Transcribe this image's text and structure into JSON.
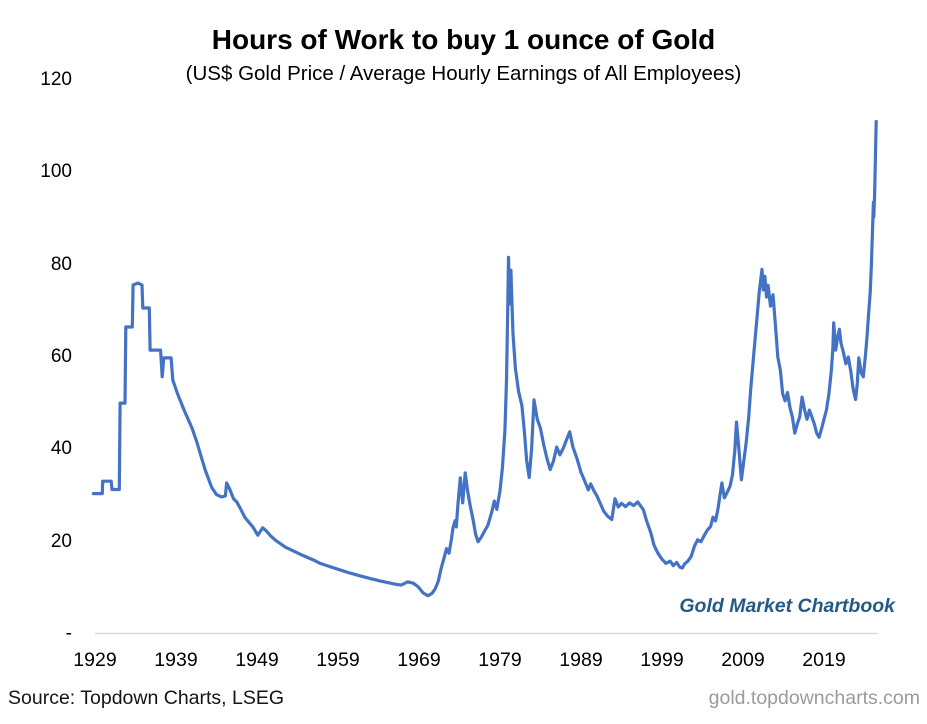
{
  "header": {
    "title": "Hours of Work to buy 1 ounce of Gold",
    "subtitle": "(US$ Gold Price / Average Hourly Earnings of All Employees)"
  },
  "watermark": "Gold Market Chartbook",
  "footer": {
    "source": "Source: Topdown Charts, LSEG",
    "website": "gold.topdowncharts.com"
  },
  "colors": {
    "line": "#4472C4",
    "watermark": "#235a87",
    "axis_line": "#d9d9d9",
    "tick_text": "#000000",
    "website_text": "#9b9b9b"
  },
  "chart_data": {
    "type": "line",
    "title": "Hours of Work to buy 1 ounce of Gold",
    "subtitle": "(US$ Gold Price / Average Hourly Earnings of All Employees)",
    "xlabel": "",
    "ylabel": "",
    "grid": false,
    "legend_position": "none",
    "xlim": [
      1929,
      2027
    ],
    "ylim": [
      0,
      120
    ],
    "x_ticks": [
      1929,
      1939,
      1949,
      1959,
      1969,
      1979,
      1989,
      1999,
      2009,
      2019
    ],
    "x_tick_labels": [
      "1929",
      "1939",
      "1949",
      "1959",
      "1969",
      "1979",
      "1989",
      "1999",
      "2009",
      "2019"
    ],
    "y_ticks": [
      0,
      20,
      40,
      60,
      80,
      100,
      120
    ],
    "y_tick_labels": [
      "-",
      "20",
      "40",
      "60",
      "80",
      "100",
      "120"
    ],
    "series": [
      {
        "name": "Hours of work to buy 1 ounce of gold",
        "points": [
          [
            1928.8,
            30.4
          ],
          [
            1929.9,
            30.4
          ],
          [
            1929.95,
            33.1
          ],
          [
            1931.0,
            33.1
          ],
          [
            1931.1,
            31.3
          ],
          [
            1932.0,
            31.3
          ],
          [
            1932.1,
            50.0
          ],
          [
            1932.7,
            50.0
          ],
          [
            1932.8,
            66.5
          ],
          [
            1933.6,
            66.5
          ],
          [
            1933.7,
            75.6
          ],
          [
            1934.3,
            76.0
          ],
          [
            1934.8,
            75.6
          ],
          [
            1934.9,
            70.6
          ],
          [
            1935.7,
            70.6
          ],
          [
            1935.8,
            61.5
          ],
          [
            1937.1,
            61.5
          ],
          [
            1937.3,
            55.7
          ],
          [
            1937.5,
            59.8
          ],
          [
            1938.4,
            59.8
          ],
          [
            1938.6,
            55.0
          ],
          [
            1939.2,
            52.0
          ],
          [
            1940.0,
            48.5
          ],
          [
            1941.0,
            44.5
          ],
          [
            1941.6,
            41.4
          ],
          [
            1942.6,
            35.5
          ],
          [
            1943.4,
            31.8
          ],
          [
            1944.0,
            30.2
          ],
          [
            1944.6,
            29.7
          ],
          [
            1945.1,
            29.9
          ],
          [
            1945.25,
            32.7
          ],
          [
            1945.6,
            31.5
          ],
          [
            1946.1,
            29.3
          ],
          [
            1946.5,
            28.6
          ],
          [
            1947.0,
            27.0
          ],
          [
            1947.5,
            25.3
          ],
          [
            1948.0,
            24.2
          ],
          [
            1948.5,
            23.2
          ],
          [
            1949.1,
            21.4
          ],
          [
            1949.7,
            23.0
          ],
          [
            1950.1,
            22.4
          ],
          [
            1950.7,
            21.2
          ],
          [
            1951.3,
            20.3
          ],
          [
            1952.5,
            18.8
          ],
          [
            1954.3,
            17.3
          ],
          [
            1956.0,
            16.0
          ],
          [
            1956.8,
            15.3
          ],
          [
            1958.0,
            14.6
          ],
          [
            1959.2,
            13.9
          ],
          [
            1960.5,
            13.2
          ],
          [
            1961.7,
            12.6
          ],
          [
            1963.0,
            12.0
          ],
          [
            1964.2,
            11.5
          ],
          [
            1966.0,
            10.8
          ],
          [
            1966.8,
            10.6
          ],
          [
            1967.6,
            11.3
          ],
          [
            1968.3,
            11.0
          ],
          [
            1968.9,
            10.2
          ],
          [
            1969.5,
            8.9
          ],
          [
            1970.1,
            8.3
          ],
          [
            1970.6,
            8.8
          ],
          [
            1971.0,
            9.8
          ],
          [
            1971.4,
            11.5
          ],
          [
            1971.7,
            14.0
          ],
          [
            1972.1,
            16.5
          ],
          [
            1972.4,
            18.5
          ],
          [
            1972.7,
            17.5
          ],
          [
            1973.0,
            20.5
          ],
          [
            1973.2,
            23.0
          ],
          [
            1973.45,
            24.5
          ],
          [
            1973.6,
            23.2
          ],
          [
            1973.8,
            28.0
          ],
          [
            1974.1,
            33.8
          ],
          [
            1974.4,
            28.4
          ],
          [
            1974.7,
            34.9
          ],
          [
            1975.0,
            31.0
          ],
          [
            1975.3,
            28.0
          ],
          [
            1975.7,
            24.5
          ],
          [
            1976.0,
            21.5
          ],
          [
            1976.3,
            20.0
          ],
          [
            1976.7,
            21.0
          ],
          [
            1977.1,
            22.3
          ],
          [
            1977.5,
            23.5
          ],
          [
            1978.0,
            26.5
          ],
          [
            1978.3,
            28.8
          ],
          [
            1978.6,
            27.0
          ],
          [
            1979.0,
            31.0
          ],
          [
            1979.3,
            36.0
          ],
          [
            1979.6,
            44.0
          ],
          [
            1979.8,
            55.0
          ],
          [
            1979.95,
            70.0
          ],
          [
            1980.05,
            81.6
          ],
          [
            1980.2,
            71.5
          ],
          [
            1980.35,
            78.8
          ],
          [
            1980.6,
            65.0
          ],
          [
            1980.9,
            57.5
          ],
          [
            1981.3,
            52.5
          ],
          [
            1981.7,
            49.5
          ],
          [
            1982.0,
            44.0
          ],
          [
            1982.3,
            37.5
          ],
          [
            1982.6,
            33.9
          ],
          [
            1982.9,
            40.0
          ],
          [
            1983.2,
            50.7
          ],
          [
            1983.6,
            46.5
          ],
          [
            1984.0,
            44.5
          ],
          [
            1984.4,
            41.0
          ],
          [
            1984.8,
            38.0
          ],
          [
            1985.2,
            35.6
          ],
          [
            1985.6,
            37.5
          ],
          [
            1986.0,
            40.5
          ],
          [
            1986.4,
            38.8
          ],
          [
            1986.8,
            40.2
          ],
          [
            1987.2,
            42.0
          ],
          [
            1987.6,
            43.8
          ],
          [
            1988.0,
            40.5
          ],
          [
            1988.5,
            38.0
          ],
          [
            1989.0,
            35.0
          ],
          [
            1989.4,
            33.4
          ],
          [
            1989.9,
            31.2
          ],
          [
            1990.2,
            32.5
          ],
          [
            1990.6,
            31.0
          ],
          [
            1991.0,
            29.8
          ],
          [
            1991.4,
            28.2
          ],
          [
            1991.8,
            26.6
          ],
          [
            1992.3,
            25.5
          ],
          [
            1992.8,
            24.8
          ],
          [
            1993.2,
            29.3
          ],
          [
            1993.6,
            27.5
          ],
          [
            1994.0,
            28.3
          ],
          [
            1994.5,
            27.6
          ],
          [
            1995.0,
            28.4
          ],
          [
            1995.5,
            27.8
          ],
          [
            1996.0,
            28.6
          ],
          [
            1996.3,
            27.9
          ],
          [
            1996.7,
            26.9
          ],
          [
            1997.1,
            24.5
          ],
          [
            1997.6,
            22.0
          ],
          [
            1998.0,
            19.3
          ],
          [
            1998.5,
            17.5
          ],
          [
            1999.0,
            16.2
          ],
          [
            1999.5,
            15.3
          ],
          [
            2000.0,
            15.8
          ],
          [
            2000.4,
            14.8
          ],
          [
            2000.8,
            15.5
          ],
          [
            2001.2,
            14.5
          ],
          [
            2001.5,
            14.3
          ],
          [
            2001.8,
            15.2
          ],
          [
            2002.2,
            15.8
          ],
          [
            2002.6,
            16.8
          ],
          [
            2003.0,
            19.0
          ],
          [
            2003.4,
            20.4
          ],
          [
            2003.8,
            20.0
          ],
          [
            2004.2,
            21.3
          ],
          [
            2004.6,
            22.5
          ],
          [
            2005.0,
            23.3
          ],
          [
            2005.3,
            25.3
          ],
          [
            2005.6,
            24.5
          ],
          [
            2005.9,
            27.0
          ],
          [
            2006.2,
            30.5
          ],
          [
            2006.4,
            32.7
          ],
          [
            2006.7,
            29.5
          ],
          [
            2007.0,
            30.5
          ],
          [
            2007.4,
            32.0
          ],
          [
            2007.7,
            34.5
          ],
          [
            2008.0,
            40.0
          ],
          [
            2008.2,
            45.9
          ],
          [
            2008.45,
            41.0
          ],
          [
            2008.8,
            33.4
          ],
          [
            2009.1,
            37.5
          ],
          [
            2009.4,
            41.5
          ],
          [
            2009.7,
            47.0
          ],
          [
            2009.95,
            53.0
          ],
          [
            2010.3,
            60.0
          ],
          [
            2010.7,
            68.0
          ],
          [
            2011.0,
            74.0
          ],
          [
            2011.35,
            79.0
          ],
          [
            2011.5,
            74.5
          ],
          [
            2011.7,
            77.5
          ],
          [
            2011.9,
            73.0
          ],
          [
            2012.1,
            75.5
          ],
          [
            2012.4,
            71.0
          ],
          [
            2012.7,
            73.5
          ],
          [
            2013.0,
            67.0
          ],
          [
            2013.3,
            60.0
          ],
          [
            2013.6,
            57.2
          ],
          [
            2013.9,
            52.0
          ],
          [
            2014.2,
            50.5
          ],
          [
            2014.5,
            52.3
          ],
          [
            2014.8,
            49.0
          ],
          [
            2015.1,
            47.0
          ],
          [
            2015.4,
            43.5
          ],
          [
            2015.7,
            45.5
          ],
          [
            2016.0,
            47.0
          ],
          [
            2016.3,
            51.3
          ],
          [
            2016.6,
            48.5
          ],
          [
            2016.9,
            46.5
          ],
          [
            2017.2,
            48.5
          ],
          [
            2017.5,
            47.0
          ],
          [
            2017.8,
            45.5
          ],
          [
            2018.1,
            43.5
          ],
          [
            2018.4,
            42.6
          ],
          [
            2018.7,
            44.5
          ],
          [
            2019.0,
            46.5
          ],
          [
            2019.3,
            48.5
          ],
          [
            2019.6,
            52.0
          ],
          [
            2019.9,
            57.0
          ],
          [
            2020.1,
            62.0
          ],
          [
            2020.2,
            67.4
          ],
          [
            2020.45,
            61.5
          ],
          [
            2020.7,
            64.5
          ],
          [
            2020.9,
            66.0
          ],
          [
            2021.1,
            63.0
          ],
          [
            2021.4,
            61.0
          ],
          [
            2021.7,
            58.5
          ],
          [
            2022.0,
            60.0
          ],
          [
            2022.3,
            57.0
          ],
          [
            2022.6,
            53.0
          ],
          [
            2022.9,
            50.8
          ],
          [
            2023.1,
            54.0
          ],
          [
            2023.3,
            59.8
          ],
          [
            2023.6,
            56.5
          ],
          [
            2023.85,
            55.7
          ],
          [
            2024.1,
            60.0
          ],
          [
            2024.3,
            64.0
          ],
          [
            2024.5,
            69.0
          ],
          [
            2024.7,
            74.0
          ],
          [
            2024.85,
            80.0
          ],
          [
            2025.0,
            88.0
          ],
          [
            2025.1,
            93.5
          ],
          [
            2025.15,
            90.3
          ],
          [
            2025.25,
            95.0
          ],
          [
            2025.35,
            103.0
          ],
          [
            2025.45,
            111.0
          ]
        ]
      }
    ]
  }
}
